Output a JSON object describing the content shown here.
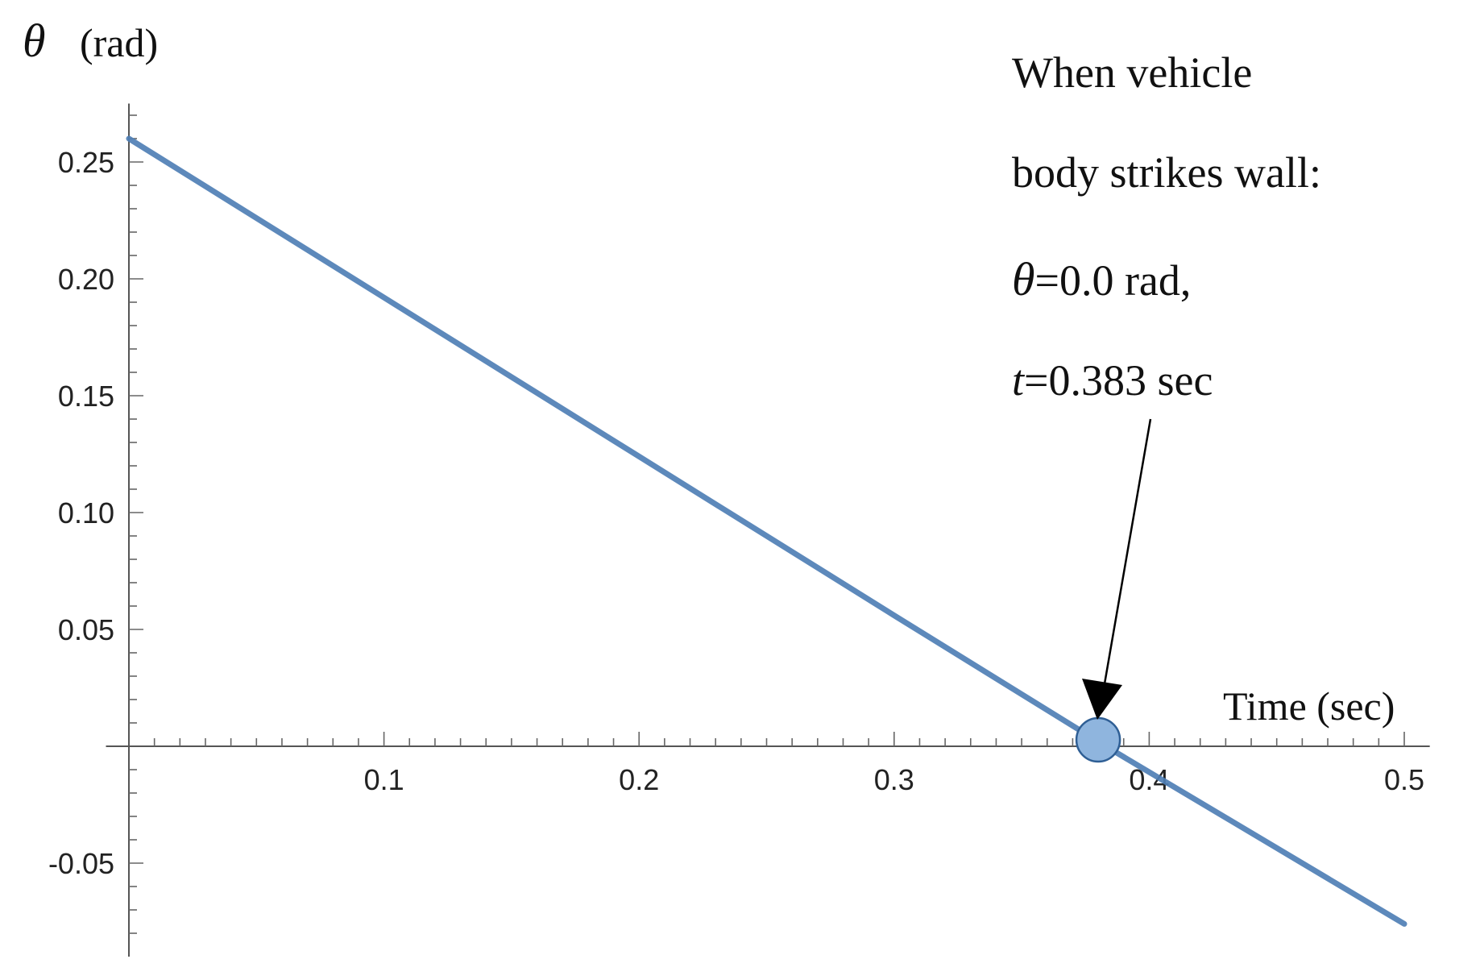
{
  "chart_data": {
    "type": "line",
    "title": "",
    "xlabel": "Time (sec)",
    "ylabel": {
      "symbol": "θ",
      "unit": "(rad)"
    },
    "xlim": [
      0,
      0.5
    ],
    "ylim": [
      -0.09,
      0.27
    ],
    "x_ticks": [
      0.1,
      0.2,
      0.3,
      0.4,
      0.5
    ],
    "x_tick_labels": [
      "0.1",
      "0.2",
      "0.3",
      "0.4",
      "0.5"
    ],
    "y_ticks": [
      -0.05,
      0.05,
      0.1,
      0.15,
      0.2,
      0.25
    ],
    "y_tick_labels": [
      "-0.05",
      "0.05",
      "0.10",
      "0.15",
      "0.20",
      "0.25"
    ],
    "grid": false,
    "series": [
      {
        "color": "#4f7fb5",
        "x": [
          0,
          0.1,
          0.2,
          0.3,
          0.383,
          0.5
        ],
        "y": [
          0.26,
          0.192,
          0.124,
          0.056,
          0.0,
          -0.076
        ]
      }
    ],
    "marker": {
      "x": 0.38,
      "y": 0.0,
      "fill": "#8fb5de",
      "stroke": "#2f5f95"
    },
    "annotation": {
      "lines": [
        "When vehicle",
        "body strikes wall:",
        {
          "symbol": "θ",
          "text": "=0.0 rad,"
        },
        {
          "symbol": "t",
          "text": "=0.383 sec"
        }
      ]
    }
  }
}
